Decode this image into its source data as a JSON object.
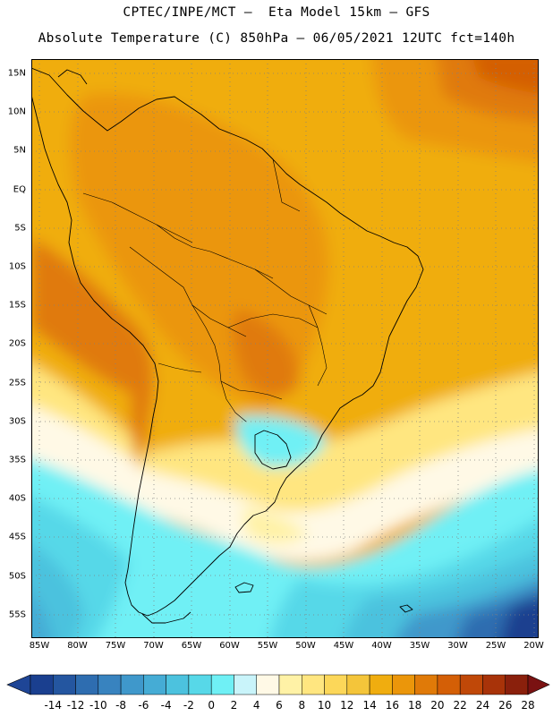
{
  "title_line1": "CPTEC/INPE/MCT –  Eta Model 15km – GFS",
  "title_line2": "Absolute Temperature (C) 850hPa – 06/05/2021 12UTC fct=140h",
  "lat_labels": [
    "15N",
    "10N",
    "5N",
    "EQ",
    "5S",
    "10S",
    "15S",
    "20S",
    "25S",
    "30S",
    "35S",
    "40S",
    "45S",
    "50S",
    "55S"
  ],
  "lon_labels": [
    "85W",
    "80W",
    "75W",
    "70W",
    "65W",
    "60W",
    "55W",
    "50W",
    "45W",
    "40W",
    "35W",
    "30W",
    "25W",
    "20W"
  ],
  "colorbar": {
    "labels": [
      "-14",
      "-12",
      "-10",
      "-8",
      "-6",
      "-4",
      "-2",
      "0",
      "2",
      "4",
      "6",
      "8",
      "10",
      "12",
      "14",
      "16",
      "18",
      "20",
      "22",
      "24",
      "26",
      "28"
    ],
    "colors": [
      "#1a3f8f",
      "#2456a0",
      "#2e6db0",
      "#3883bf",
      "#3f98cb",
      "#45acd5",
      "#4cc2de",
      "#57d8e8",
      "#6ff0f5",
      "#c9f4fa",
      "#fff9e6",
      "#fff2a6",
      "#ffe680",
      "#fcd759",
      "#f4c53a",
      "#f0ad0f",
      "#eb960a",
      "#e07a08",
      "#d45f06",
      "#c04808",
      "#a83309",
      "#8a200c"
    ],
    "under_color": "#1e4596",
    "over_color": "#7a1212"
  }
}
